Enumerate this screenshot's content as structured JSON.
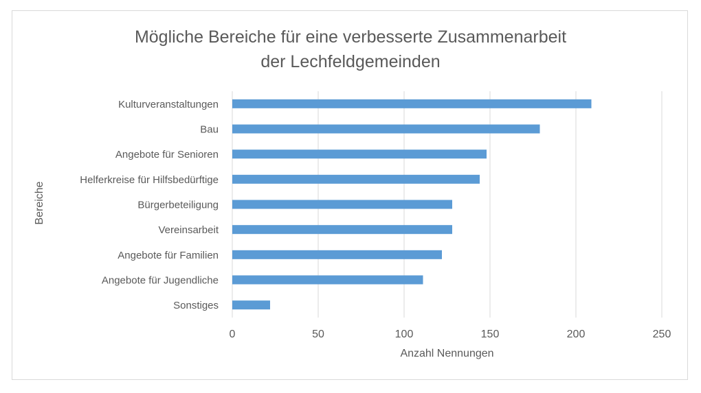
{
  "chart_data": {
    "type": "bar",
    "orientation": "horizontal",
    "title": "Mögliche Bereiche für eine verbesserte Zusammenarbeit\nder Lechfeldgemeinden",
    "xlabel": "Anzahl Nennungen",
    "ylabel": "Bereiche",
    "xlim": [
      0,
      250
    ],
    "xticks": [
      "0",
      "50",
      "100",
      "150",
      "200",
      "250"
    ],
    "grid": true,
    "bar_color": "#5b9bd5",
    "categories": [
      "Kulturveranstaltungen",
      "Bau",
      "Angebote für Senioren",
      "Helferkreise für Hilfsbedürftige",
      "Bürgerbeteiligung",
      "Vereinsarbeit",
      "Angebote für Familien",
      "Angebote für Jugendliche",
      "Sonstiges"
    ],
    "values": [
      209,
      179,
      148,
      144,
      128,
      128,
      122,
      111,
      22
    ]
  }
}
